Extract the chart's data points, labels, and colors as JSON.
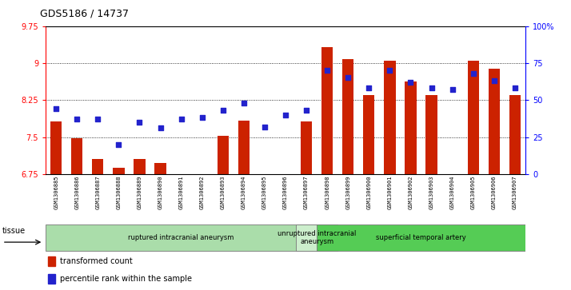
{
  "title": "GDS5186 / 14737",
  "samples": [
    "GSM1306885",
    "GSM1306886",
    "GSM1306887",
    "GSM1306888",
    "GSM1306889",
    "GSM1306890",
    "GSM1306891",
    "GSM1306892",
    "GSM1306893",
    "GSM1306894",
    "GSM1306895",
    "GSM1306896",
    "GSM1306897",
    "GSM1306898",
    "GSM1306899",
    "GSM1306900",
    "GSM1306901",
    "GSM1306902",
    "GSM1306903",
    "GSM1306904",
    "GSM1306905",
    "GSM1306906",
    "GSM1306907"
  ],
  "bar_values": [
    7.82,
    7.48,
    7.05,
    6.88,
    7.05,
    6.98,
    6.72,
    6.7,
    7.52,
    7.84,
    6.72,
    6.7,
    7.82,
    9.33,
    9.08,
    8.35,
    9.05,
    8.63,
    8.35,
    6.73,
    9.05,
    8.88,
    8.35
  ],
  "percentile_values": [
    44,
    37,
    37,
    20,
    35,
    31,
    37,
    38,
    43,
    48,
    32,
    40,
    43,
    70,
    65,
    58,
    70,
    62,
    58,
    57,
    68,
    63,
    58
  ],
  "groups": [
    {
      "label": "ruptured intracranial aneurysm",
      "start": 0,
      "end": 12,
      "color": "#aaddaa"
    },
    {
      "label": "unruptured intracranial\naneurysm",
      "start": 12,
      "end": 13,
      "color": "#cceecc"
    },
    {
      "label": "superficial temporal artery",
      "start": 13,
      "end": 22,
      "color": "#55cc55"
    }
  ],
  "ylim_left": [
    6.75,
    9.75
  ],
  "ylim_right": [
    0,
    100
  ],
  "yticks_left": [
    6.75,
    7.5,
    8.25,
    9.0,
    9.75
  ],
  "ytick_labels_left": [
    "6.75",
    "7.5",
    "8.25",
    "9",
    "9.75"
  ],
  "yticks_right": [
    0,
    25,
    50,
    75,
    100
  ],
  "ytick_labels_right": [
    "0",
    "25",
    "50",
    "75",
    "100%"
  ],
  "bar_color": "#cc2200",
  "dot_color": "#2222cc",
  "plot_bg": "#ffffff",
  "tissue_label": "tissue",
  "legend_bar": "transformed count",
  "legend_dot": "percentile rank within the sample",
  "grid_yticks": [
    7.5,
    8.25,
    9.0
  ]
}
